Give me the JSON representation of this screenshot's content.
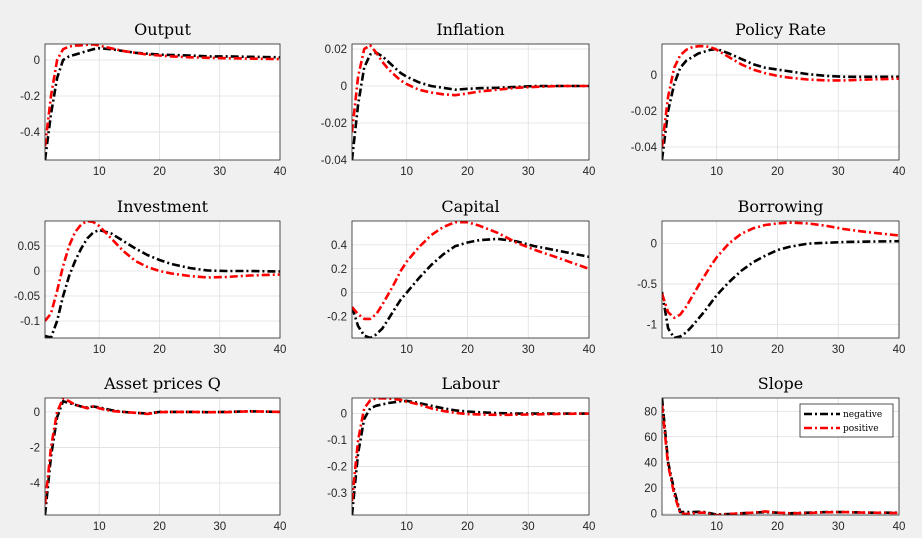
{
  "chart_data": [
    {
      "type": "line",
      "title": "Output",
      "xlim": [
        1,
        40
      ],
      "ylim": [
        -0.556,
        0.089
      ],
      "xticks": [
        10,
        20,
        30,
        40
      ],
      "xtick_labels": [
        "10",
        "20",
        "30",
        "40"
      ],
      "yticks": [
        -0.4,
        -0.2,
        0
      ],
      "ytick_labels": [
        "-0.4",
        "-0.2",
        "0"
      ],
      "grid": true,
      "x": [
        1,
        2,
        3,
        4,
        5,
        6,
        7,
        8,
        9,
        10,
        12,
        14,
        16,
        18,
        20,
        22,
        25,
        28,
        31,
        35,
        40
      ],
      "series": [
        {
          "name": "negative",
          "color": "#000000",
          "values": [
            -0.556,
            -0.3,
            -0.1,
            0.0,
            0.02,
            0.03,
            0.04,
            0.05,
            0.06,
            0.065,
            0.06,
            0.05,
            0.04,
            0.035,
            0.03,
            0.028,
            0.025,
            0.02,
            0.02,
            0.018,
            0.015
          ]
        },
        {
          "name": "positive",
          "color": "#ff0000",
          "values": [
            -0.48,
            -0.2,
            0.0,
            0.06,
            0.075,
            0.08,
            0.082,
            0.085,
            0.087,
            0.08,
            0.065,
            0.05,
            0.04,
            0.03,
            0.025,
            0.02,
            0.015,
            0.012,
            0.01,
            0.008,
            0.005
          ]
        }
      ]
    },
    {
      "type": "line",
      "title": "Inflation",
      "xlim": [
        1,
        40
      ],
      "ylim": [
        -0.04,
        0.0227
      ],
      "xticks": [
        10,
        20,
        30,
        40
      ],
      "xtick_labels": [
        "10",
        "20",
        "30",
        "40"
      ],
      "yticks": [
        -0.04,
        -0.02,
        0,
        0.02
      ],
      "ytick_labels": [
        "-0.04",
        "-0.02",
        "0",
        "0.02"
      ],
      "grid": true,
      "x": [
        1,
        2,
        3,
        4,
        5,
        6,
        7,
        8,
        9,
        10,
        12,
        14,
        16,
        18,
        20,
        22,
        25,
        28,
        31,
        35,
        40
      ],
      "series": [
        {
          "name": "negative",
          "color": "#000000",
          "values": [
            -0.04,
            -0.01,
            0.01,
            0.017,
            0.018,
            0.016,
            0.013,
            0.01,
            0.007,
            0.005,
            0.002,
            0.0,
            -0.001,
            -0.002,
            -0.0015,
            -0.0012,
            -0.001,
            -0.0005,
            0,
            0,
            0
          ]
        },
        {
          "name": "positive",
          "color": "#ff0000",
          "values": [
            -0.025,
            0.005,
            0.02,
            0.022,
            0.018,
            0.013,
            0.009,
            0.006,
            0.003,
            0.001,
            -0.002,
            -0.0035,
            -0.0045,
            -0.005,
            -0.004,
            -0.003,
            -0.002,
            -0.001,
            -0.0005,
            0,
            0
          ]
        }
      ]
    },
    {
      "type": "line",
      "title": "Policy Rate",
      "xlim": [
        1,
        40
      ],
      "ylim": [
        -0.0472,
        0.0172
      ],
      "xticks": [
        10,
        20,
        30,
        40
      ],
      "xtick_labels": [
        "10",
        "20",
        "30",
        "40"
      ],
      "yticks": [
        -0.04,
        -0.02,
        0
      ],
      "ytick_labels": [
        "-0.04",
        "-0.02",
        "0"
      ],
      "grid": true,
      "x": [
        1,
        2,
        3,
        4,
        5,
        6,
        7,
        8,
        9,
        10,
        12,
        14,
        16,
        18,
        20,
        22,
        25,
        28,
        31,
        35,
        40
      ],
      "series": [
        {
          "name": "negative",
          "color": "#000000",
          "values": [
            -0.047,
            -0.02,
            -0.005,
            0.004,
            0.008,
            0.01,
            0.012,
            0.013,
            0.014,
            0.0145,
            0.012,
            0.009,
            0.006,
            0.004,
            0.003,
            0.002,
            0.0005,
            -0.0005,
            -0.001,
            -0.001,
            -0.001
          ]
        },
        {
          "name": "positive",
          "color": "#ff0000",
          "values": [
            -0.04,
            -0.012,
            0.004,
            0.011,
            0.014,
            0.0155,
            0.016,
            0.016,
            0.0155,
            0.014,
            0.01,
            0.006,
            0.003,
            0.001,
            -0.0005,
            -0.0015,
            -0.0025,
            -0.003,
            -0.003,
            -0.0025,
            -0.002
          ]
        }
      ]
    },
    {
      "type": "line",
      "title": "Investment",
      "xlim": [
        1,
        40
      ],
      "ylim": [
        -0.134,
        0.1
      ],
      "xticks": [
        10,
        20,
        30,
        40
      ],
      "xtick_labels": [
        "10",
        "20",
        "30",
        "40"
      ],
      "yticks": [
        -0.1,
        -0.05,
        0,
        0.05
      ],
      "ytick_labels": [
        "-0.1",
        "-0.05",
        "0",
        "0.05"
      ],
      "grid": true,
      "x": [
        1,
        2,
        3,
        4,
        5,
        6,
        7,
        8,
        9,
        10,
        12,
        14,
        16,
        18,
        20,
        22,
        25,
        28,
        31,
        35,
        40
      ],
      "series": [
        {
          "name": "negative",
          "color": "#000000",
          "values": [
            -0.13,
            -0.133,
            -0.1,
            -0.05,
            -0.01,
            0.02,
            0.045,
            0.065,
            0.077,
            0.082,
            0.075,
            0.06,
            0.045,
            0.032,
            0.022,
            0.014,
            0.006,
            0.001,
            0,
            0,
            -0.001
          ]
        },
        {
          "name": "positive",
          "color": "#ff0000",
          "values": [
            -0.1,
            -0.085,
            -0.04,
            0.01,
            0.05,
            0.078,
            0.093,
            0.1,
            0.098,
            0.09,
            0.065,
            0.04,
            0.02,
            0.008,
            0.0,
            -0.005,
            -0.01,
            -0.013,
            -0.012,
            -0.009,
            -0.007
          ]
        }
      ]
    },
    {
      "type": "line",
      "title": "Capital",
      "xlim": [
        1,
        40
      ],
      "ylim": [
        -0.38,
        0.6
      ],
      "xticks": [
        10,
        20,
        30,
        40
      ],
      "xtick_labels": [
        "10",
        "20",
        "30",
        "40"
      ],
      "yticks": [
        -0.2,
        0,
        0.2,
        0.4
      ],
      "ytick_labels": [
        "-0.2",
        "0",
        "0.2",
        "0.4"
      ],
      "grid": true,
      "x": [
        1,
        2,
        3,
        4,
        5,
        6,
        7,
        8,
        9,
        10,
        12,
        14,
        16,
        18,
        20,
        22,
        25,
        28,
        31,
        35,
        40
      ],
      "series": [
        {
          "name": "negative",
          "color": "#000000",
          "values": [
            -0.12,
            -0.28,
            -0.36,
            -0.38,
            -0.35,
            -0.3,
            -0.22,
            -0.14,
            -0.06,
            0.0,
            0.12,
            0.23,
            0.32,
            0.39,
            0.42,
            0.44,
            0.45,
            0.43,
            0.39,
            0.35,
            0.3
          ]
        },
        {
          "name": "positive",
          "color": "#ff0000",
          "values": [
            -0.12,
            -0.18,
            -0.22,
            -0.22,
            -0.18,
            -0.1,
            -0.01,
            0.08,
            0.18,
            0.26,
            0.38,
            0.48,
            0.55,
            0.59,
            0.59,
            0.56,
            0.5,
            0.42,
            0.36,
            0.29,
            0.2
          ]
        }
      ]
    },
    {
      "type": "line",
      "title": "Borrowing",
      "xlim": [
        1,
        40
      ],
      "ylim": [
        -1.17,
        0.28
      ],
      "xticks": [
        10,
        20,
        30,
        40
      ],
      "xtick_labels": [
        "10",
        "20",
        "30",
        "40"
      ],
      "yticks": [
        -1,
        -0.5,
        0
      ],
      "ytick_labels": [
        "-1",
        "-0.5",
        "0"
      ],
      "grid": true,
      "x": [
        1,
        2,
        3,
        4,
        5,
        6,
        7,
        8,
        9,
        10,
        12,
        14,
        16,
        18,
        20,
        22,
        25,
        28,
        31,
        35,
        40
      ],
      "series": [
        {
          "name": "negative",
          "color": "#000000",
          "values": [
            -0.6,
            -1.05,
            -1.17,
            -1.15,
            -1.1,
            -1.02,
            -0.93,
            -0.84,
            -0.74,
            -0.64,
            -0.48,
            -0.34,
            -0.23,
            -0.15,
            -0.08,
            -0.04,
            0.0,
            0.01,
            0.02,
            0.025,
            0.03
          ]
        },
        {
          "name": "positive",
          "color": "#ff0000",
          "values": [
            -0.62,
            -0.85,
            -0.92,
            -0.88,
            -0.78,
            -0.65,
            -0.52,
            -0.4,
            -0.28,
            -0.17,
            0.0,
            0.12,
            0.19,
            0.23,
            0.25,
            0.26,
            0.25,
            0.22,
            0.18,
            0.14,
            0.1
          ]
        }
      ]
    },
    {
      "type": "line",
      "title": "Asset prices Q",
      "xlim": [
        1,
        40
      ],
      "ylim": [
        -5.8,
        0.78
      ],
      "xticks": [
        10,
        20,
        30,
        40
      ],
      "xtick_labels": [
        "10",
        "20",
        "30",
        "40"
      ],
      "yticks": [
        -4,
        -2,
        0
      ],
      "ytick_labels": [
        "-4",
        "-2",
        "0"
      ],
      "grid": true,
      "x": [
        1,
        2,
        3,
        4,
        5,
        6,
        7,
        8,
        9,
        10,
        12,
        14,
        16,
        18,
        20,
        22,
        25,
        28,
        31,
        35,
        40
      ],
      "series": [
        {
          "name": "negative",
          "color": "#000000",
          "values": [
            -5.8,
            -2.5,
            -0.3,
            0.6,
            0.5,
            0.4,
            0.3,
            0.25,
            0.3,
            0.25,
            0.1,
            0.0,
            -0.05,
            -0.1,
            0,
            0,
            0,
            -0.02,
            0,
            0.03,
            0
          ]
        },
        {
          "name": "positive",
          "color": "#ff0000",
          "values": [
            -5.2,
            -2.0,
            0.0,
            0.75,
            0.6,
            0.4,
            0.3,
            0.2,
            0.3,
            0.2,
            0.05,
            0,
            -0.05,
            -0.12,
            -0.02,
            0,
            0,
            -0.02,
            -0.02,
            0.03,
            0
          ]
        }
      ]
    },
    {
      "type": "line",
      "title": "Labour",
      "xlim": [
        1,
        40
      ],
      "ylim": [
        -0.383,
        0.059
      ],
      "xticks": [
        10,
        20,
        30,
        40
      ],
      "xtick_labels": [
        "10",
        "20",
        "30",
        "40"
      ],
      "yticks": [
        -0.3,
        -0.2,
        -0.1,
        0
      ],
      "ytick_labels": [
        "-0.3",
        "-0.2",
        "-0.1",
        "0"
      ],
      "grid": true,
      "x": [
        1,
        2,
        3,
        4,
        5,
        6,
        7,
        8,
        9,
        10,
        12,
        14,
        16,
        18,
        20,
        22,
        25,
        28,
        31,
        35,
        40
      ],
      "series": [
        {
          "name": "negative",
          "color": "#000000",
          "values": [
            -0.383,
            -0.15,
            -0.02,
            0.02,
            0.03,
            0.035,
            0.04,
            0.043,
            0.047,
            0.048,
            0.04,
            0.03,
            0.02,
            0.012,
            0.008,
            0.005,
            0.002,
            0,
            0,
            0,
            0
          ]
        },
        {
          "name": "positive",
          "color": "#ff0000",
          "values": [
            -0.33,
            -0.1,
            0.02,
            0.05,
            0.058,
            0.058,
            0.057,
            0.055,
            0.052,
            0.045,
            0.035,
            0.02,
            0.01,
            0.003,
            -0.002,
            -0.003,
            -0.005,
            -0.004,
            -0.003,
            -0.001,
            0
          ]
        }
      ]
    },
    {
      "type": "line",
      "title": "Slope",
      "xlim": [
        1,
        40
      ],
      "ylim": [
        -1.3,
        90.4
      ],
      "xticks": [
        10,
        20,
        30,
        40
      ],
      "xtick_labels": [
        "10",
        "20",
        "30",
        "40"
      ],
      "yticks": [
        0,
        20,
        40,
        60,
        80
      ],
      "ytick_labels": [
        "0",
        "20",
        "40",
        "60",
        "80"
      ],
      "grid": true,
      "legend": {
        "placement": "top-right",
        "entries": [
          "negative",
          "positive"
        ]
      },
      "x": [
        1,
        2,
        3,
        4,
        5,
        6,
        7,
        8,
        9,
        10,
        12,
        14,
        16,
        18,
        20,
        22,
        25,
        28,
        31,
        35,
        40
      ],
      "series": [
        {
          "name": "negative",
          "color": "#000000",
          "values": [
            90.4,
            40,
            18,
            1,
            1,
            1,
            1.2,
            1,
            0,
            -1,
            -0.5,
            0,
            0.5,
            1,
            0.5,
            0,
            0.5,
            1,
            1,
            0.5,
            0.5
          ]
        },
        {
          "name": "positive",
          "color": "#ff0000",
          "values": [
            85,
            38,
            15,
            0,
            -0.5,
            0,
            0.5,
            0.5,
            -0.5,
            -1.5,
            -0.5,
            0,
            0.5,
            1.5,
            0.5,
            0,
            0.3,
            0.8,
            1,
            0.5,
            0.3
          ]
        }
      ]
    }
  ]
}
